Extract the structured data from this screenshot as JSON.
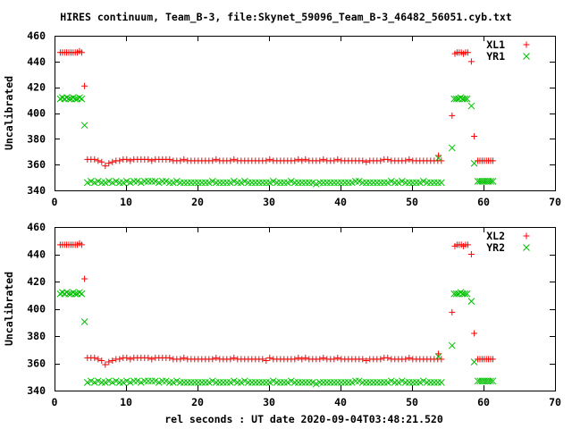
{
  "title": "HIRES continuum, Team_B-3, file:Skynet_59096_Team_B-3_46482_56051.cyb.txt",
  "xlabel": "rel seconds : UT date 2020-09-04T03:48:21.520",
  "colors": {
    "xl": "#ff0000",
    "yr": "#00c000",
    "axis": "#000000"
  },
  "chart_data": [
    {
      "type": "scatter",
      "ylabel": "Uncalibrated",
      "xlim": [
        0,
        70
      ],
      "ylim": [
        340,
        460
      ],
      "xticks": [
        0,
        10,
        20,
        30,
        40,
        50,
        60,
        70
      ],
      "yticks": [
        340,
        360,
        380,
        400,
        420,
        440,
        460
      ],
      "legend_position": "top-right",
      "series": [
        {
          "name": "XL1",
          "marker": "plus",
          "color": "#ff0000",
          "segments": [
            {
              "x0": 0.8,
              "dx": 0.3,
              "y": [
                447,
                447,
                447,
                447,
                447,
                447,
                447,
                447,
                447,
                448,
                447
              ]
            },
            {
              "x0": 4.2,
              "dx": 0,
              "y": [
                421
              ]
            },
            {
              "x0": 4.6,
              "dx": 0.5,
              "y": [
                364,
                364,
                364,
                363,
                362,
                359,
                361,
                362,
                363,
                363,
                364,
                364,
                363,
                364,
                364,
                364,
                364,
                364,
                363,
                364,
                364,
                364,
                364,
                364,
                363,
                363,
                363,
                364,
                363,
                363,
                363,
                363,
                363,
                363,
                363,
                363,
                364,
                363,
                363,
                363,
                363,
                364,
                363,
                363,
                363,
                363,
                363,
                363,
                363,
                363,
                363,
                364,
                363,
                363,
                363,
                363,
                363,
                363,
                363,
                364,
                363,
                364,
                363,
                363,
                363,
                363,
                364,
                363,
                363,
                363,
                364,
                363,
                363,
                363,
                363,
                363,
                363,
                363,
                362,
                363,
                363,
                363,
                363,
                364,
                364,
                363,
                363,
                363,
                363,
                363,
                364,
                363,
                363,
                363,
                363,
                363,
                363,
                363,
                363,
                363
              ]
            },
            {
              "x0": 53.7,
              "dx": 0,
              "y": [
                367
              ]
            },
            {
              "x0": 55.6,
              "dx": 0,
              "y": [
                398
              ]
            },
            {
              "x0": 56.0,
              "dx": 0.3,
              "y": [
                446,
                447,
                447,
                447,
                446,
                447,
                447
              ]
            },
            {
              "x0": 58.3,
              "dx": 0,
              "y": [
                440
              ]
            },
            {
              "x0": 58.7,
              "dx": 0,
              "y": [
                382
              ]
            },
            {
              "x0": 59.2,
              "dx": 0.3,
              "y": [
                363,
                363,
                363,
                363,
                363,
                363,
                363,
                363
              ]
            }
          ]
        },
        {
          "name": "YR1",
          "marker": "cross",
          "color": "#00c000",
          "segments": [
            {
              "x0": 0.8,
              "dx": 0.3,
              "y": [
                411,
                412,
                411,
                412,
                411,
                411,
                412,
                411,
                411,
                412,
                411
              ]
            },
            {
              "x0": 4.2,
              "dx": 0,
              "y": [
                390.5
              ]
            },
            {
              "x0": 4.6,
              "dx": 0.5,
              "y": [
                346,
                347,
                346,
                347,
                346,
                346,
                347,
                346,
                347,
                346,
                346,
                347,
                346,
                347,
                347,
                346,
                347,
                347,
                347,
                347,
                346,
                347,
                347,
                346,
                346,
                347,
                346,
                346,
                346,
                346,
                346,
                346,
                346,
                346,
                346,
                347,
                346,
                346,
                346,
                346,
                346,
                347,
                346,
                346,
                347,
                346,
                346,
                346,
                346,
                346,
                346,
                346,
                347,
                346,
                346,
                346,
                346,
                347,
                346,
                346,
                346,
                346,
                346,
                346,
                345,
                346,
                346,
                346,
                346,
                346,
                346,
                346,
                346,
                346,
                346,
                347,
                347,
                346,
                346,
                346,
                346,
                346,
                346,
                346,
                346,
                347,
                346,
                346,
                347,
                346,
                346,
                346,
                346,
                346,
                347,
                346,
                346,
                346,
                346,
                346
              ]
            },
            {
              "x0": 53.7,
              "dx": 0,
              "y": [
                365
              ]
            },
            {
              "x0": 55.6,
              "dx": 0,
              "y": [
                373
              ]
            },
            {
              "x0": 55.9,
              "dx": 0.3,
              "y": [
                411,
                411,
                411,
                412,
                411,
                411,
                411
              ]
            },
            {
              "x0": 58.3,
              "dx": 0,
              "y": [
                405.5
              ]
            },
            {
              "x0": 58.7,
              "dx": 0,
              "y": [
                361
              ]
            },
            {
              "x0": 59.2,
              "dx": 0.3,
              "y": [
                347,
                347,
                347,
                347,
                347,
                347,
                347,
                347
              ]
            }
          ]
        }
      ]
    },
    {
      "type": "scatter",
      "ylabel": "Uncalibrated",
      "xlim": [
        0,
        70
      ],
      "ylim": [
        340,
        460
      ],
      "xticks": [
        0,
        10,
        20,
        30,
        40,
        50,
        60,
        70
      ],
      "yticks": [
        340,
        360,
        380,
        400,
        420,
        440,
        460
      ],
      "legend_position": "top-right",
      "series": [
        {
          "name": "XL2",
          "marker": "plus",
          "color": "#ff0000",
          "segments": [
            {
              "x0": 0.8,
              "dx": 0.3,
              "y": [
                447,
                447,
                447,
                447,
                447,
                447,
                447,
                447,
                447,
                448,
                447
              ]
            },
            {
              "x0": 4.2,
              "dx": 0,
              "y": [
                422
              ]
            },
            {
              "x0": 4.6,
              "dx": 0.5,
              "y": [
                364,
                364,
                364,
                363,
                362,
                359,
                361,
                362,
                363,
                363,
                364,
                364,
                363,
                364,
                364,
                364,
                364,
                364,
                363,
                364,
                364,
                364,
                364,
                364,
                363,
                363,
                363,
                364,
                363,
                363,
                363,
                363,
                363,
                363,
                363,
                363,
                364,
                363,
                363,
                363,
                363,
                364,
                363,
                363,
                363,
                363,
                363,
                363,
                363,
                363,
                362,
                364,
                363,
                363,
                363,
                363,
                363,
                363,
                363,
                364,
                363,
                364,
                363,
                363,
                363,
                363,
                364,
                363,
                363,
                363,
                364,
                363,
                363,
                363,
                363,
                363,
                363,
                363,
                362,
                363,
                363,
                363,
                363,
                364,
                364,
                363,
                363,
                363,
                363,
                363,
                364,
                363,
                363,
                363,
                363,
                363,
                363,
                363,
                363,
                363
              ]
            },
            {
              "x0": 53.7,
              "dx": 0,
              "y": [
                367
              ]
            },
            {
              "x0": 55.6,
              "dx": 0,
              "y": [
                397.5
              ]
            },
            {
              "x0": 56.0,
              "dx": 0.3,
              "y": [
                446,
                447,
                447,
                447,
                446,
                447,
                447
              ]
            },
            {
              "x0": 58.3,
              "dx": 0,
              "y": [
                440
              ]
            },
            {
              "x0": 58.7,
              "dx": 0,
              "y": [
                382
              ]
            },
            {
              "x0": 59.2,
              "dx": 0.3,
              "y": [
                363,
                363,
                363,
                363,
                363,
                363,
                363,
                363
              ]
            }
          ]
        },
        {
          "name": "YR2",
          "marker": "cross",
          "color": "#00c000",
          "segments": [
            {
              "x0": 0.8,
              "dx": 0.3,
              "y": [
                411,
                412,
                411,
                412,
                411,
                411,
                412,
                411,
                411,
                412,
                411
              ]
            },
            {
              "x0": 4.2,
              "dx": 0,
              "y": [
                390.5
              ]
            },
            {
              "x0": 4.6,
              "dx": 0.5,
              "y": [
                346,
                347,
                346,
                347,
                346,
                346,
                347,
                346,
                347,
                346,
                346,
                347,
                346,
                347,
                347,
                346,
                347,
                347,
                347,
                347,
                346,
                347,
                347,
                346,
                346,
                347,
                346,
                346,
                346,
                346,
                346,
                346,
                346,
                346,
                346,
                347,
                346,
                346,
                346,
                346,
                346,
                347,
                346,
                346,
                347,
                346,
                346,
                346,
                346,
                346,
                346,
                346,
                347,
                346,
                346,
                346,
                346,
                347,
                346,
                346,
                346,
                346,
                346,
                346,
                345,
                346,
                346,
                346,
                346,
                346,
                346,
                346,
                346,
                346,
                346,
                347,
                347,
                346,
                346,
                346,
                346,
                346,
                346,
                346,
                346,
                347,
                346,
                346,
                347,
                346,
                346,
                346,
                346,
                346,
                347,
                346,
                346,
                346,
                346,
                346
              ]
            },
            {
              "x0": 53.7,
              "dx": 0,
              "y": [
                365
              ]
            },
            {
              "x0": 55.6,
              "dx": 0,
              "y": [
                373
              ]
            },
            {
              "x0": 55.9,
              "dx": 0.3,
              "y": [
                411,
                411,
                411,
                412,
                411,
                411,
                411
              ]
            },
            {
              "x0": 58.3,
              "dx": 0,
              "y": [
                405.5
              ]
            },
            {
              "x0": 58.7,
              "dx": 0,
              "y": [
                361
              ]
            },
            {
              "x0": 59.2,
              "dx": 0.3,
              "y": [
                347,
                347,
                347,
                347,
                347,
                347,
                347,
                347
              ]
            }
          ]
        }
      ]
    }
  ]
}
